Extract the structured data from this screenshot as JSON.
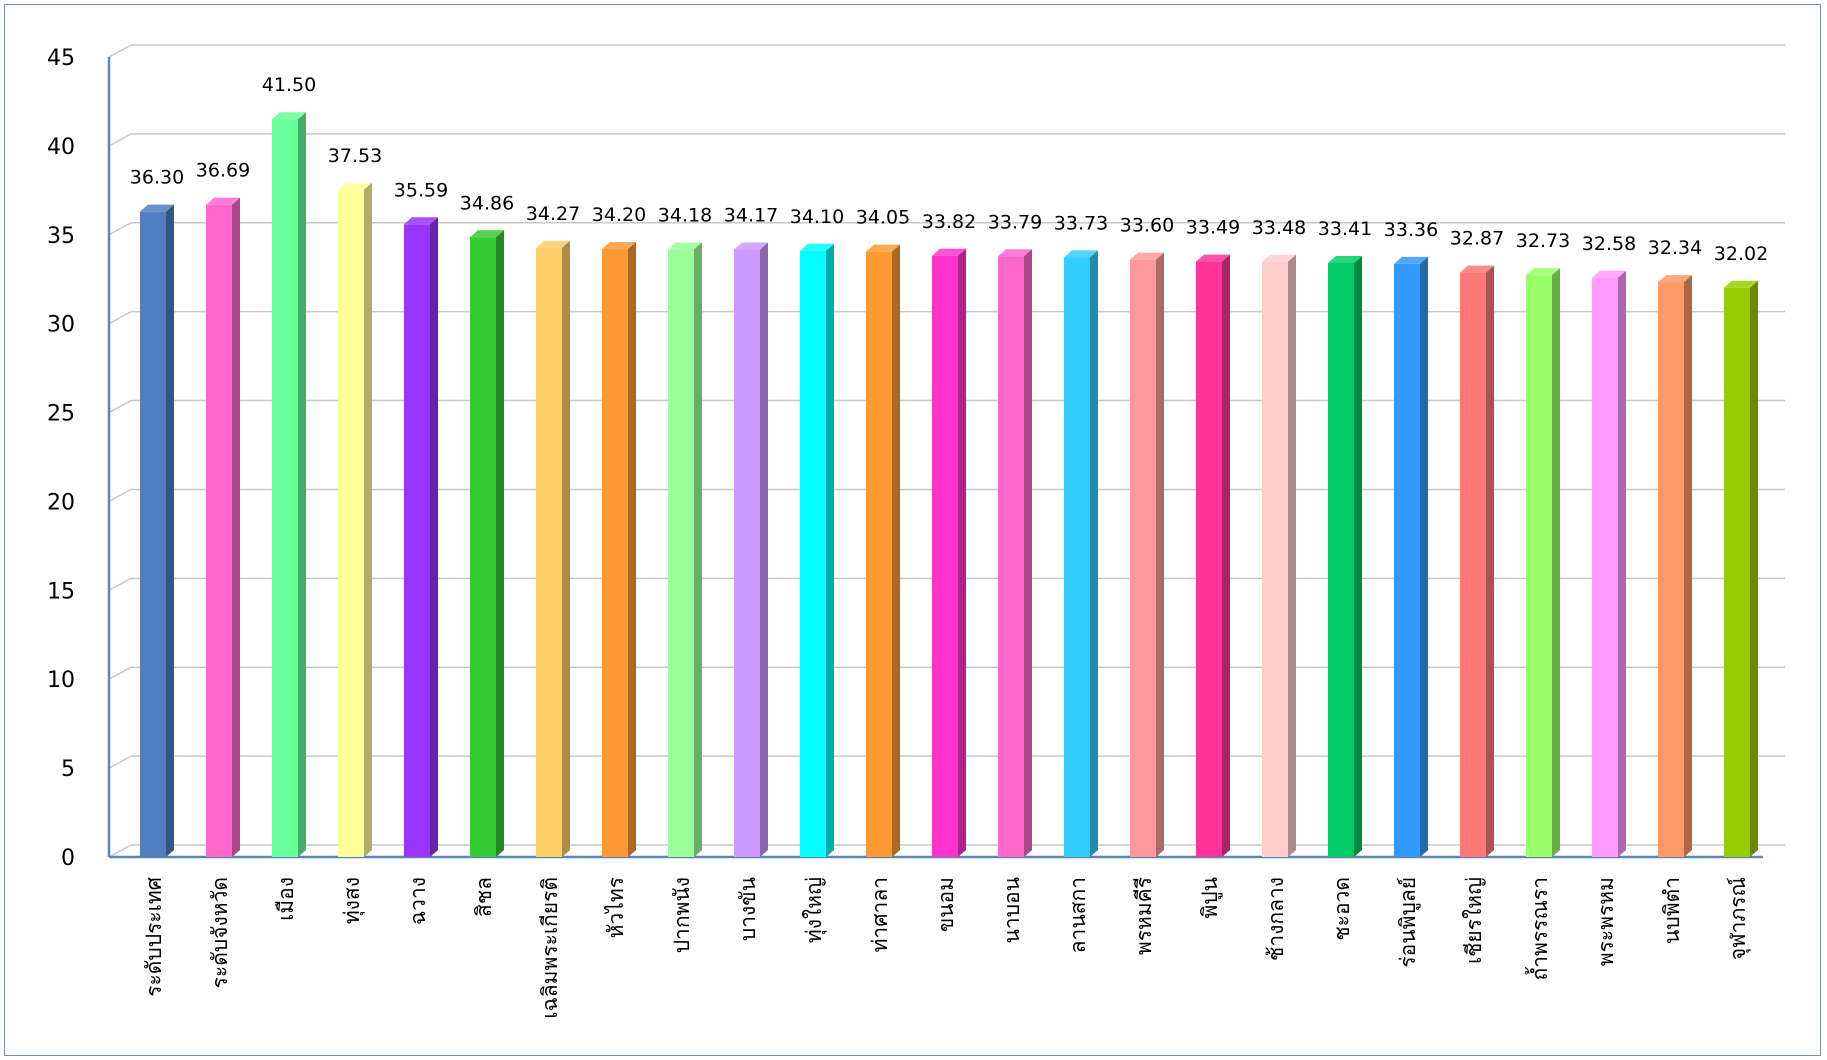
{
  "chart_data": {
    "type": "bar",
    "title": "",
    "xlabel": "",
    "ylabel": "",
    "ylim": [
      0,
      45
    ],
    "yticks": [
      "0",
      "5",
      "10",
      "15",
      "20",
      "25",
      "30",
      "35",
      "40",
      "45"
    ],
    "grid": true,
    "legend": "none",
    "categories": [
      "ระดับประเทศ",
      "ระดับจังหวัด",
      "เมือง",
      "ทุ่งสง",
      "ฉวาง",
      "สิชล",
      "เฉลิมพระเกียรติ",
      "หัวไทร",
      "ปากพนัง",
      "บางขัน",
      "ทุ่งใหญ่",
      "ท่าศาลา",
      "ขนอม",
      "นาบอน",
      "ลานสกา",
      "พรหมคีรี",
      "พิปูน",
      "ช้างกลาง",
      "ชะอวด",
      "ร่อนพิบูลย์",
      "เชียรใหญ่",
      "ถ้ำพรรณรา",
      "พระพรหม",
      "นบพิตำ",
      "จุฬาภรณ์"
    ],
    "values": [
      36.3,
      36.69,
      41.5,
      37.53,
      35.59,
      34.86,
      34.27,
      34.2,
      34.18,
      34.17,
      34.1,
      34.05,
      33.82,
      33.79,
      33.73,
      33.6,
      33.49,
      33.48,
      33.41,
      33.36,
      32.87,
      32.73,
      32.58,
      32.34,
      32.02
    ],
    "value_labels": [
      "36.30",
      "36.69",
      "41.50",
      "37.53",
      "35.59",
      "34.86",
      "34.27",
      "34.20",
      "34.18",
      "34.17",
      "34.10",
      "34.05",
      "33.82",
      "33.79",
      "33.73",
      "33.60",
      "33.49",
      "33.48",
      "33.41",
      "33.36",
      "32.87",
      "32.73",
      "32.58",
      "32.34",
      "32.02"
    ],
    "colors": [
      "#4f7fbf",
      "#ff66cc",
      "#66ff99",
      "#ffff99",
      "#9933ff",
      "#33cc33",
      "#ffcc66",
      "#ff9933",
      "#99ff99",
      "#cc99ff",
      "#00ffff",
      "#ff9933",
      "#ff33cc",
      "#ff66cc",
      "#33ccff",
      "#ff9999",
      "#ff3399",
      "#ffcccc",
      "#00cc66",
      "#3399ff",
      "#ff7777",
      "#99ff66",
      "#ff99ff",
      "#ff9966",
      "#99cc00"
    ]
  }
}
